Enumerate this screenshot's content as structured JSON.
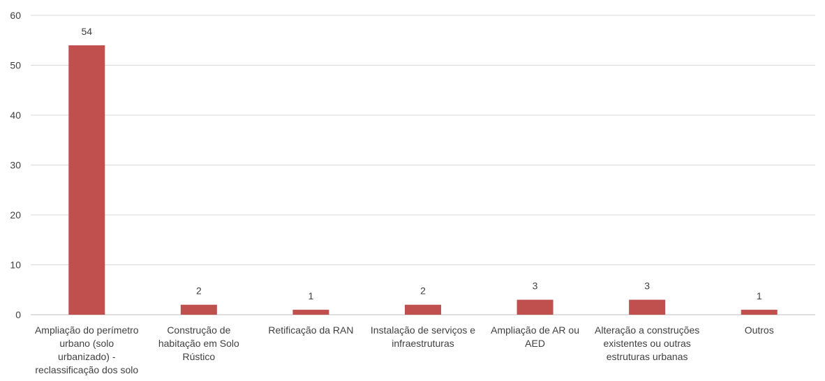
{
  "chart_data": {
    "type": "bar",
    "categories": [
      [
        "Ampliação do perímetro",
        "urbano (solo",
        "urbanizado) -",
        "reclassificação dos solo"
      ],
      [
        "Construção de",
        "habitação em Solo",
        "Rústico"
      ],
      [
        "Retificação da RAN"
      ],
      [
        "Instalação de serviços e",
        "infraestruturas"
      ],
      [
        "Ampliação de AR ou",
        "AED"
      ],
      [
        "Alteração a construções",
        "existentes ou outras",
        "estruturas urbanas"
      ],
      [
        "Outros"
      ]
    ],
    "values": [
      54,
      2,
      1,
      2,
      3,
      3,
      1
    ],
    "data_labels": [
      "54",
      "2",
      "1",
      "2",
      "3",
      "3",
      "1"
    ],
    "ylim": [
      0,
      60
    ],
    "yticks": [
      0,
      10,
      20,
      30,
      40,
      50,
      60
    ],
    "ytick_labels": [
      "0",
      "10",
      "20",
      "30",
      "40",
      "50",
      "60"
    ],
    "grid": true,
    "legend": "none",
    "title": "",
    "xlabel": "",
    "ylabel": "",
    "bar_color": "#c0504d"
  }
}
